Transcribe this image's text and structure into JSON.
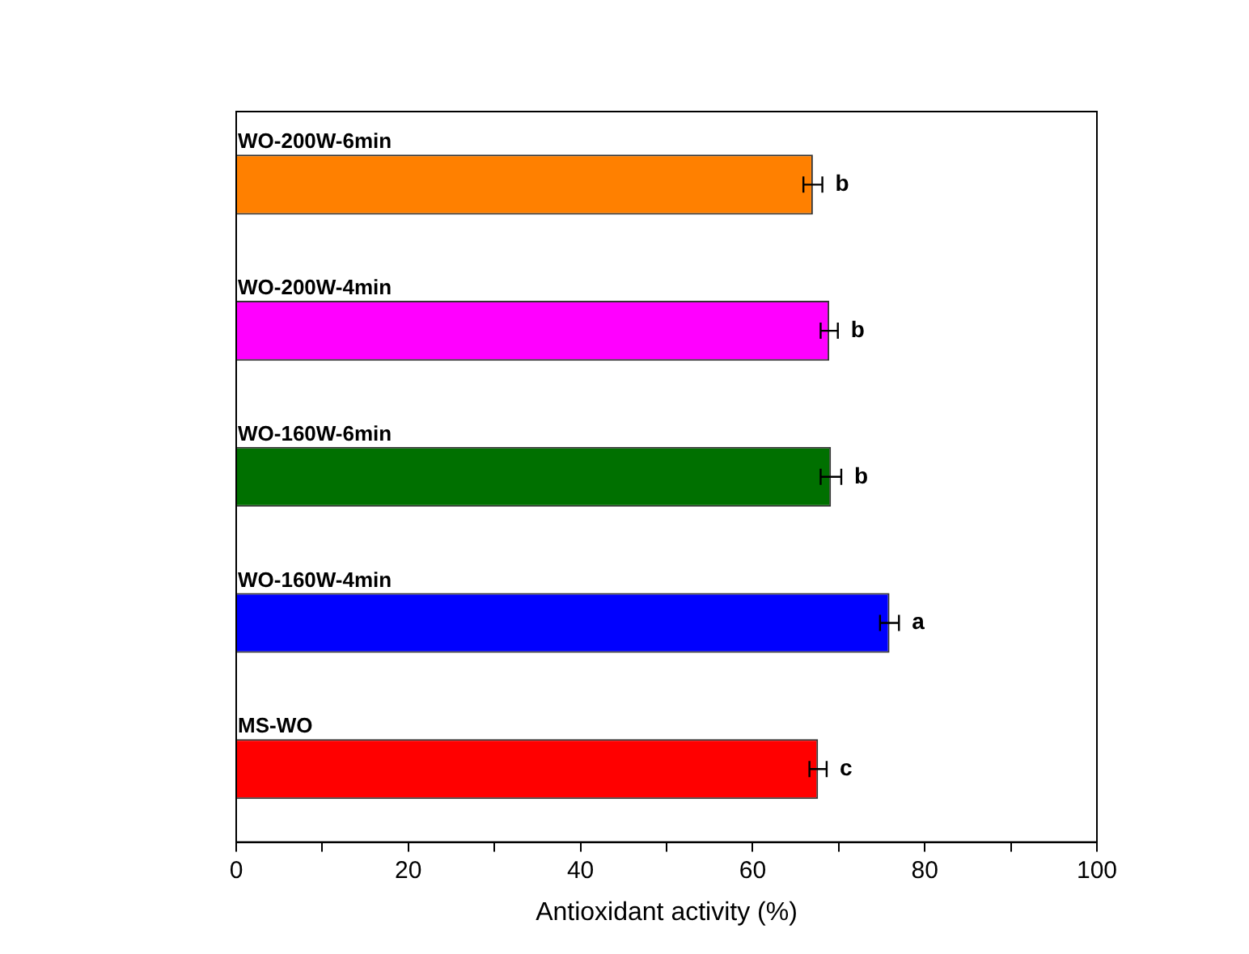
{
  "chart_data": {
    "type": "bar",
    "orientation": "horizontal",
    "xlabel": "Antioxidant activity (%)",
    "categories": [
      "WO-200W-6min",
      "WO-200W-4min",
      "WO-160W-6min",
      "WO-160W-4min",
      "MS-WO"
    ],
    "values": [
      67.0,
      68.9,
      69.1,
      75.9,
      67.6
    ],
    "colors": [
      "#ff8000",
      "#ff00ff",
      "#007000",
      "#0000ff",
      "#ff0000"
    ],
    "errors": [
      1.1,
      1.0,
      1.2,
      1.1,
      1.0
    ],
    "xlim": [
      0,
      100
    ],
    "xticks": [
      0,
      {
        "value": 10,
        "label": null
      },
      20,
      {
        "value": 30,
        "label": null
      },
      40,
      {
        "value": 50,
        "label": null
      },
      60,
      {
        "value": 70,
        "label": null
      },
      80,
      {
        "value": 90,
        "label": null
      },
      100
    ],
    "grid": false,
    "legend": false,
    "annotations": [
      {
        "text": "b",
        "x": 67.0,
        "y": "WO-200W-6min"
      },
      {
        "text": "b",
        "x": 68.9,
        "y": "WO-200W-4min"
      },
      {
        "text": "b",
        "x": 69.1,
        "y": "WO-160W-6min"
      },
      {
        "text": "a",
        "x": 75.9,
        "y": "WO-160W-4min"
      },
      {
        "text": "c",
        "x": 67.6,
        "y": "MS-WO"
      }
    ]
  }
}
